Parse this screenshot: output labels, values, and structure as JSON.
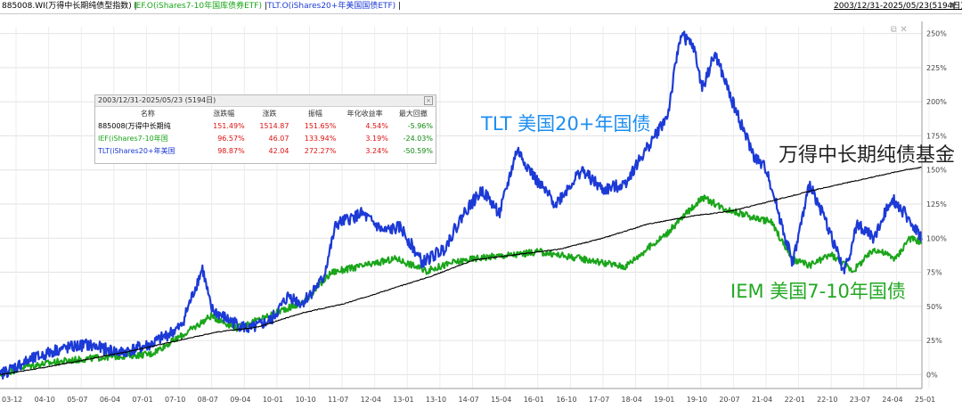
{
  "header": {
    "legend": [
      {
        "label": "885008.WI(万得中长期纯债型指数)",
        "color": "#000000"
      },
      {
        "label": "IEF.O(iShares7-10年国库债券ETF)",
        "color": "#1aa51a"
      },
      {
        "label": "TLT.O(iShares20+年美国国债ETF)",
        "color": "#1c3ad6"
      }
    ],
    "separator": "|",
    "date_range": "2003/12/31-2025/05/23(5194日)",
    "dropdown_icon": "triangle-down-icon"
  },
  "stats_box": {
    "title": "2003/12/31-2025/05/23 (5194日)",
    "close_icon": "close-icon",
    "columns": [
      "名称",
      "涨跌幅",
      "涨跌",
      "振幅",
      "年化收益率",
      "最大回撤"
    ],
    "rows": [
      {
        "name": "885008(万得中长期纯",
        "name_color": "#000000",
        "cells": [
          "151.49%",
          "1514.87",
          "151.65%",
          "4.54%",
          "-5.96%"
        ]
      },
      {
        "name": "IEF(iShares7-10年国",
        "name_color": "#1aa51a",
        "cells": [
          "96.57%",
          "46.07",
          "133.94%",
          "3.19%",
          "-24.03%"
        ]
      },
      {
        "name": "TLT(iShares20+年美国",
        "name_color": "#1c3ad6",
        "cells": [
          "98.87%",
          "42.04",
          "272.27%",
          "3.24%",
          "-50.59%"
        ]
      }
    ]
  },
  "chart_data": {
    "type": "line",
    "x_tick_labels": [
      "03-12",
      "04-10",
      "05-07",
      "06-04",
      "07-01",
      "07-10",
      "08-07",
      "09-04",
      "10-01",
      "10-10",
      "11-07",
      "12-04",
      "13-01",
      "13-10",
      "14-07",
      "15-04",
      "16-01",
      "16-10",
      "17-07",
      "18-04",
      "19-01",
      "19-10",
      "20-07",
      "21-04",
      "22-01",
      "22-10",
      "23-07",
      "24-04",
      "25-01"
    ],
    "y_tick_labels": [
      "0%",
      "25%",
      "50%",
      "75%",
      "100%",
      "125%",
      "150%",
      "175%",
      "200%",
      "225%",
      "250%"
    ],
    "ylim": [
      -5,
      255
    ],
    "xlim": [
      2004.0,
      2025.4
    ],
    "grid": true,
    "annotations": [
      {
        "text": "TLT  美国20+年国债",
        "color": "#1e8ef0"
      },
      {
        "text": "万得中长期纯债基金",
        "color": "#222222"
      },
      {
        "text": "IEM  美国7-10年国债",
        "color": "#22a822"
      }
    ],
    "series": [
      {
        "name": "885008.WI(万得中长期纯债型指数)",
        "color": "#000000",
        "x": [
          2004.0,
          2005.0,
          2006.0,
          2007.0,
          2008.0,
          2009.0,
          2010.0,
          2011.0,
          2012.0,
          2013.0,
          2014.0,
          2015.0,
          2016.0,
          2017.0,
          2018.0,
          2019.0,
          2020.0,
          2021.0,
          2022.0,
          2023.0,
          2024.0,
          2025.0,
          2025.4
        ],
        "y": [
          0,
          5,
          11,
          17,
          24,
          31,
          35,
          45,
          52,
          62,
          72,
          84,
          88,
          92,
          100,
          110,
          116,
          120,
          128,
          136,
          143,
          150,
          152
        ]
      },
      {
        "name": "IEF.O(iShares7-10年国库债券ETF)",
        "color": "#1aa51a",
        "x": [
          2004.0,
          2004.6,
          2005.5,
          2006.5,
          2007.5,
          2008.3,
          2008.9,
          2009.5,
          2010.0,
          2010.6,
          2011.0,
          2011.7,
          2012.5,
          2013.2,
          2013.9,
          2014.5,
          2015.2,
          2016.0,
          2016.5,
          2017.5,
          2018.5,
          2019.5,
          2020.3,
          2020.8,
          2021.5,
          2021.9,
          2022.4,
          2022.8,
          2023.3,
          2023.8,
          2024.3,
          2024.8,
          2025.1,
          2025.4
        ],
        "y": [
          0,
          6,
          10,
          13,
          15,
          30,
          43,
          34,
          40,
          48,
          52,
          75,
          80,
          85,
          76,
          82,
          86,
          88,
          90,
          85,
          79,
          104,
          130,
          122,
          115,
          112,
          84,
          80,
          88,
          76,
          92,
          85,
          100,
          97
        ]
      },
      {
        "name": "TLT.O(iShares20+年美国国债ETF)",
        "color": "#1c3ad6",
        "x": [
          2004.0,
          2004.5,
          2005.3,
          2006.0,
          2006.8,
          2007.5,
          2008.2,
          2008.7,
          2008.9,
          2009.3,
          2009.8,
          2010.3,
          2010.7,
          2011.0,
          2011.5,
          2011.8,
          2012.4,
          2012.9,
          2013.3,
          2013.8,
          2014.3,
          2014.8,
          2015.2,
          2015.6,
          2016.0,
          2016.5,
          2016.9,
          2017.5,
          2018.0,
          2018.5,
          2019.0,
          2019.5,
          2019.8,
          2020.1,
          2020.3,
          2020.6,
          2021.0,
          2021.5,
          2021.8,
          2022.1,
          2022.4,
          2022.8,
          2023.2,
          2023.6,
          2023.9,
          2024.3,
          2024.7,
          2025.0,
          2025.4
        ],
        "y": [
          0,
          8,
          18,
          22,
          16,
          22,
          35,
          78,
          48,
          40,
          33,
          40,
          58,
          52,
          70,
          110,
          118,
          105,
          108,
          82,
          92,
          120,
          135,
          118,
          165,
          140,
          125,
          150,
          135,
          140,
          165,
          190,
          250,
          240,
          210,
          235,
          200,
          160,
          150,
          115,
          82,
          140,
          110,
          75,
          110,
          100,
          130,
          118,
          100
        ]
      }
    ]
  }
}
